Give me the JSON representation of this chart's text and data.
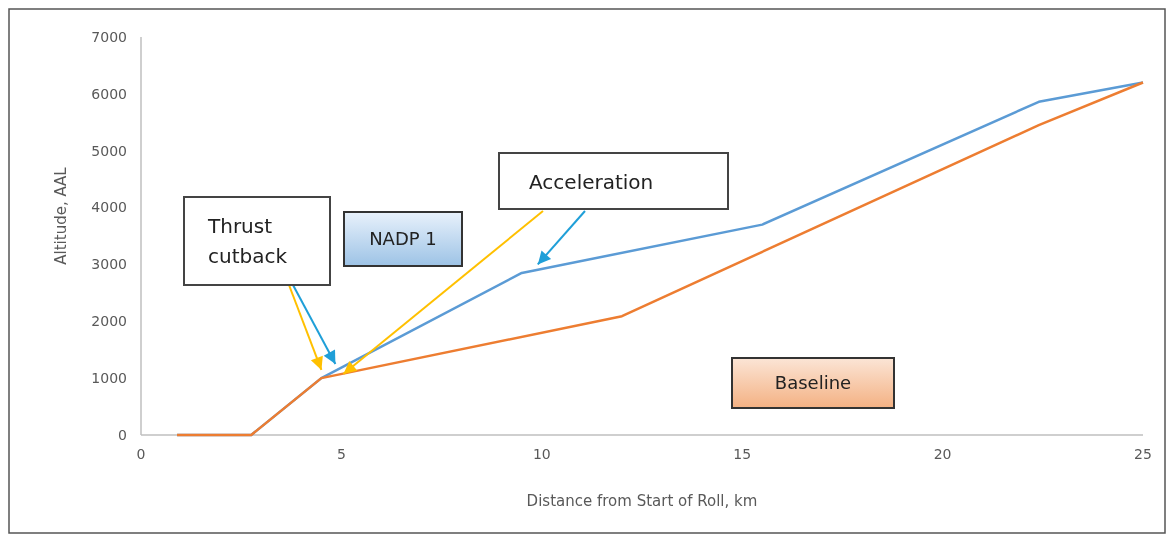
{
  "chart_data": {
    "type": "line",
    "xlabel": "Distance from Start of Roll, km",
    "ylabel": "Altitude, AAL",
    "xlim": [
      0,
      25
    ],
    "xticks": [
      0,
      5,
      10,
      15,
      20,
      25
    ],
    "ylim": [
      0,
      7000
    ],
    "yticks": [
      0,
      1000,
      2000,
      3000,
      4000,
      5000,
      6000,
      7000
    ],
    "grid": false,
    "marker": "none",
    "line_style": "solid",
    "series": [
      {
        "name": "NADP 1",
        "color": "#5b9bd5",
        "x": [
          0.9,
          2.75,
          4.5,
          9.5,
          15.5,
          22.4,
          25
        ],
        "values": [
          0,
          0,
          1000,
          2850,
          3700,
          5860,
          6200
        ]
      },
      {
        "name": "Baseline",
        "color": "#ed7d31",
        "x": [
          0.9,
          2.75,
          4.5,
          12,
          22.4,
          25
        ],
        "values": [
          0,
          0,
          1000,
          2090,
          5450,
          6200
        ]
      }
    ],
    "annotations": [
      {
        "text": "Thrust cutback",
        "x": 4.85,
        "y": 1250
      },
      {
        "text": "Acceleration",
        "x": 9.9,
        "y": 3000
      }
    ]
  }
}
